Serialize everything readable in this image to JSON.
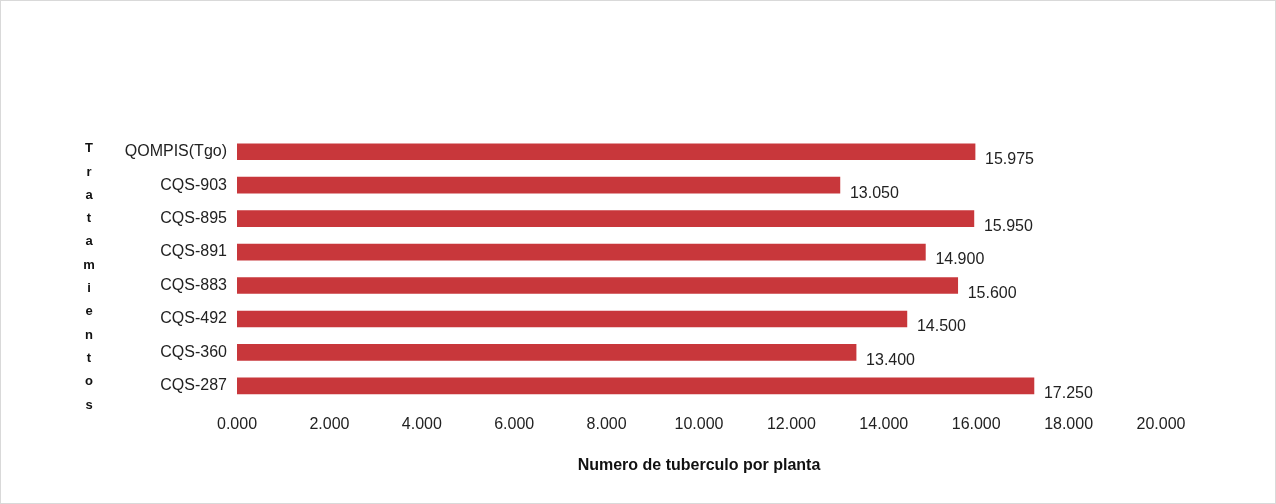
{
  "chart_data": {
    "type": "bar",
    "orientation": "horizontal",
    "xlabel": "Numero de tuberculo por planta",
    "ylabel": "Tratamientos",
    "categories": [
      "QOMPIS(Tgo)",
      "CQS-903",
      "CQS-895",
      "CQS-891",
      "CQS-883",
      "CQS-492",
      "CQS-360",
      "CQS-287"
    ],
    "values": [
      15.975,
      13.05,
      15.95,
      14.9,
      15.6,
      14.5,
      13.4,
      17.25
    ],
    "value_labels": [
      "15.975",
      "13.050",
      "15.950",
      "14.900",
      "15.600",
      "14.500",
      "13.400",
      "17.250"
    ],
    "color": "#c8373b",
    "xlim": [
      0,
      20
    ],
    "xticks": [
      {
        "value": 0,
        "label": "0.000"
      },
      {
        "value": 2,
        "label": "2.000"
      },
      {
        "value": 4,
        "label": "4.000"
      },
      {
        "value": 6,
        "label": "6.000"
      },
      {
        "value": 8,
        "label": "8.000"
      },
      {
        "value": 10,
        "label": "10.000"
      },
      {
        "value": 12,
        "label": "12.000"
      },
      {
        "value": 14,
        "label": "14.000"
      },
      {
        "value": 16,
        "label": "16.000"
      },
      {
        "value": 18,
        "label": "18.000"
      },
      {
        "value": 20,
        "label": "20.000"
      }
    ],
    "grid": false
  }
}
